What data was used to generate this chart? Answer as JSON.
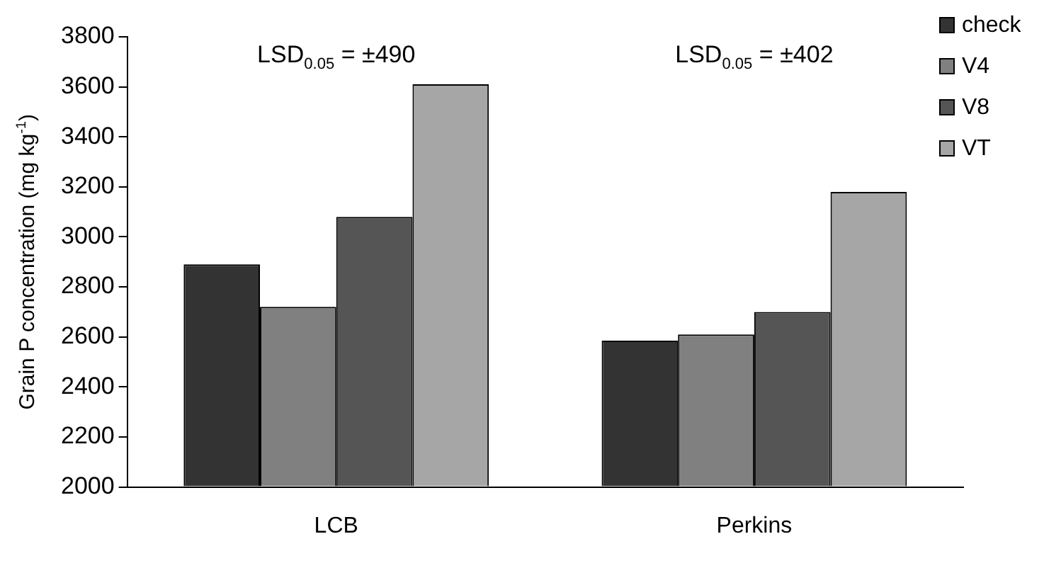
{
  "chart_data": {
    "type": "bar",
    "ylabel": "Grain P concentration (mg kg$^{-1}$)",
    "categories": [
      "LCB",
      "Perkins"
    ],
    "series": [
      {
        "name": "check",
        "color": "#333333",
        "values": [
          2890,
          2585
        ]
      },
      {
        "name": "V4",
        "color": "#808080",
        "values": [
          2720,
          2610
        ]
      },
      {
        "name": "V8",
        "color": "#555555",
        "values": [
          3080,
          2700
        ]
      },
      {
        "name": "VT",
        "color": "#a6a6a6",
        "values": [
          3610,
          3180
        ]
      }
    ],
    "ylim": [
      2000,
      3800
    ],
    "yticks": [
      2000,
      2200,
      2400,
      2600,
      2800,
      3000,
      3200,
      3400,
      3600,
      3800
    ],
    "grid": false,
    "legend": "top right",
    "annotations": [
      "LSD$_{0.05}$ = ±490",
      "LSD$_{0.05}$ = ±402"
    ]
  }
}
